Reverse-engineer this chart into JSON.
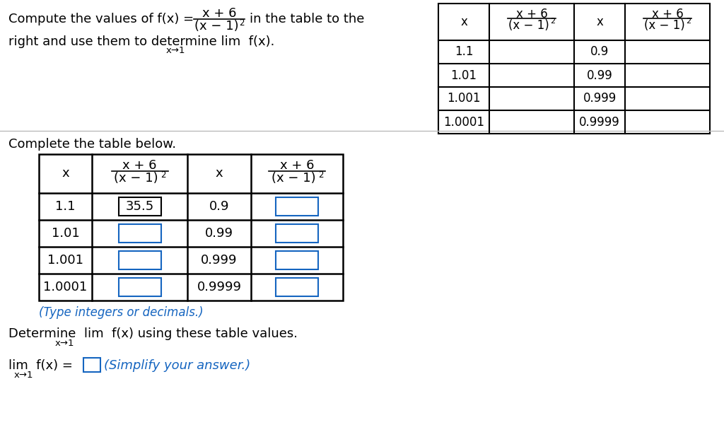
{
  "bg_color": "#ffffff",
  "x_right_from1": [
    "1.1",
    "1.01",
    "1.001",
    "1.0001"
  ],
  "x_left_from1": [
    "0.9",
    "0.99",
    "0.999",
    "0.9999"
  ],
  "filled_value": "35.5",
  "type_hint": "(Type integers or decimals.)",
  "determine_text": "Determine  lim  f(x) using these table values.",
  "simplify_text": "(Simplify your answer.)",
  "blue_color": "#1565C0",
  "black_color": "#000000",
  "fig_w": 10.24,
  "fig_h": 6.01,
  "dpi": 100
}
